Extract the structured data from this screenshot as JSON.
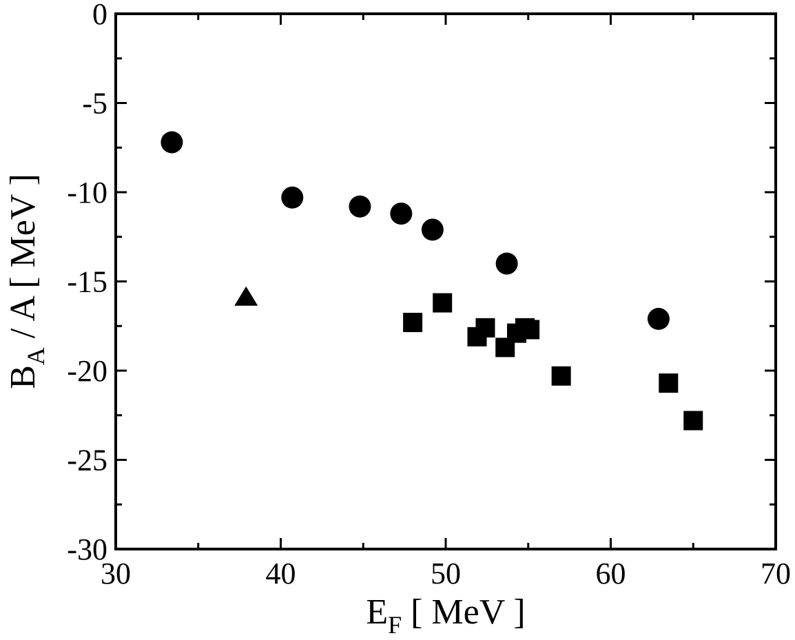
{
  "chart_data": {
    "type": "scatter",
    "xlabel": {
      "main": "E",
      "sub": "F",
      "rest": " [ MeV ]"
    },
    "ylabel": {
      "main": "B",
      "sub": "A",
      "rest": " / A [ MeV ]"
    },
    "xlim": [
      30,
      70
    ],
    "ylim": [
      -30,
      0
    ],
    "x_ticks": [
      30,
      40,
      50,
      60,
      70
    ],
    "y_ticks": [
      0,
      -5,
      -10,
      -15,
      -20,
      -25,
      -30
    ],
    "grid": false,
    "series": [
      {
        "marker": "circle",
        "points": [
          {
            "x": 33.4,
            "y": -7.2
          },
          {
            "x": 40.7,
            "y": -10.3
          },
          {
            "x": 44.8,
            "y": -10.8
          },
          {
            "x": 47.3,
            "y": -11.2
          },
          {
            "x": 49.2,
            "y": -12.1
          },
          {
            "x": 53.7,
            "y": -14.0
          },
          {
            "x": 62.9,
            "y": -17.1
          }
        ]
      },
      {
        "marker": "triangle",
        "points": [
          {
            "x": 37.9,
            "y": -15.9
          }
        ]
      },
      {
        "marker": "square",
        "points": [
          {
            "x": 48.0,
            "y": -17.3
          },
          {
            "x": 49.8,
            "y": -16.2
          },
          {
            "x": 51.9,
            "y": -18.1
          },
          {
            "x": 52.4,
            "y": -17.6
          },
          {
            "x": 53.6,
            "y": -18.7
          },
          {
            "x": 54.3,
            "y": -17.9
          },
          {
            "x": 54.8,
            "y": -17.6
          },
          {
            "x": 55.1,
            "y": -17.7
          },
          {
            "x": 57.0,
            "y": -20.3
          },
          {
            "x": 63.5,
            "y": -20.7
          },
          {
            "x": 65.0,
            "y": -22.8
          }
        ]
      }
    ]
  }
}
